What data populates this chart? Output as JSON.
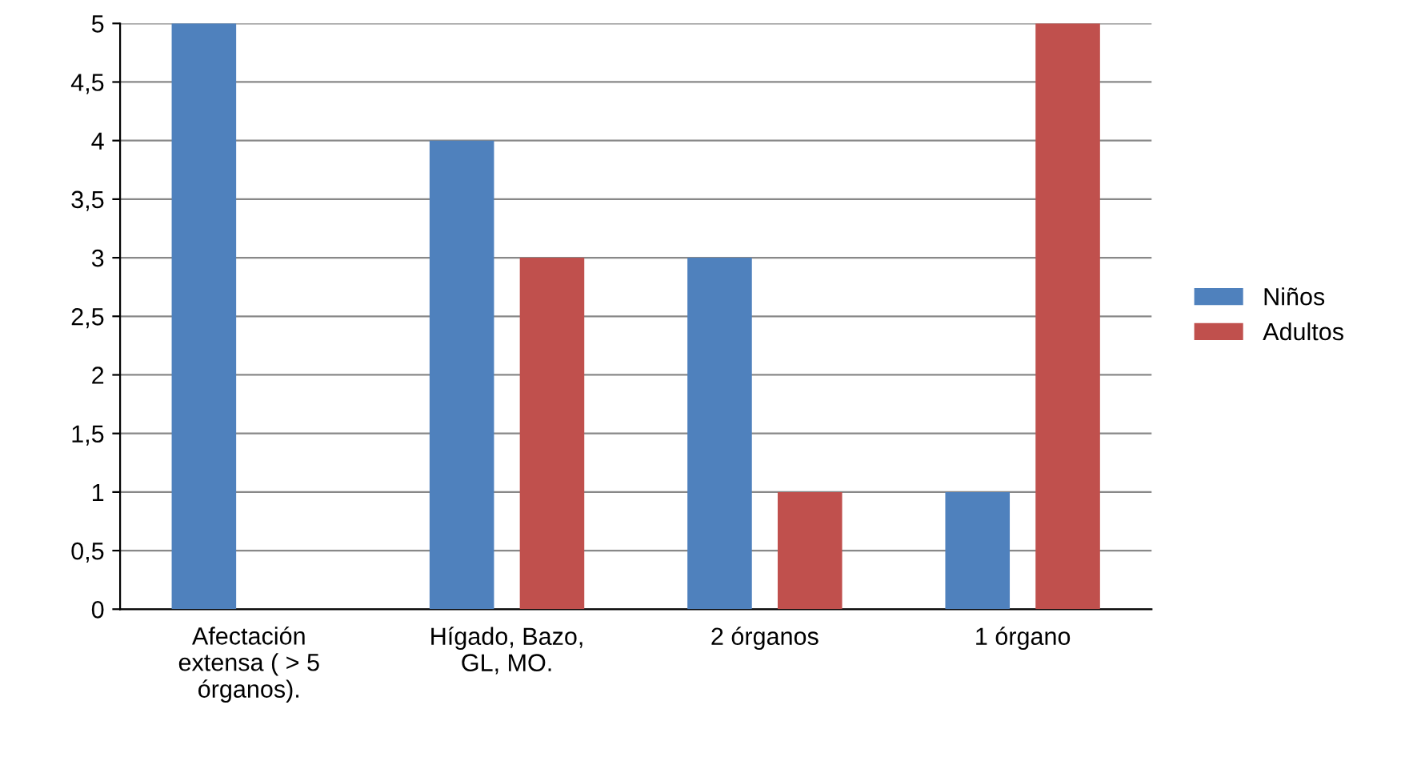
{
  "chart_data": {
    "type": "bar",
    "categories": [
      "Afectación extensa ( > 5 órganos).",
      "Hígado, Bazo, GL, MO.",
      "2 órganos",
      "1 órgano"
    ],
    "series": [
      {
        "name": "Niños",
        "color": "#4f81bd",
        "values": [
          5,
          4,
          3,
          1
        ]
      },
      {
        "name": "Adultos",
        "color": "#c0504d",
        "values": [
          0,
          3,
          1,
          5
        ]
      }
    ],
    "ylim": [
      0,
      5
    ],
    "yticks": [
      0,
      {
        "value": 0.5,
        "label": "0,5"
      },
      1,
      {
        "value": 1.5,
        "label": "1,5"
      },
      2,
      {
        "value": 2.5,
        "label": "2,5"
      },
      3,
      {
        "value": 3.5,
        "label": "3,5"
      },
      4,
      {
        "value": 4.5,
        "label": "4,5"
      },
      5
    ],
    "grid": "y",
    "legend": "right"
  }
}
